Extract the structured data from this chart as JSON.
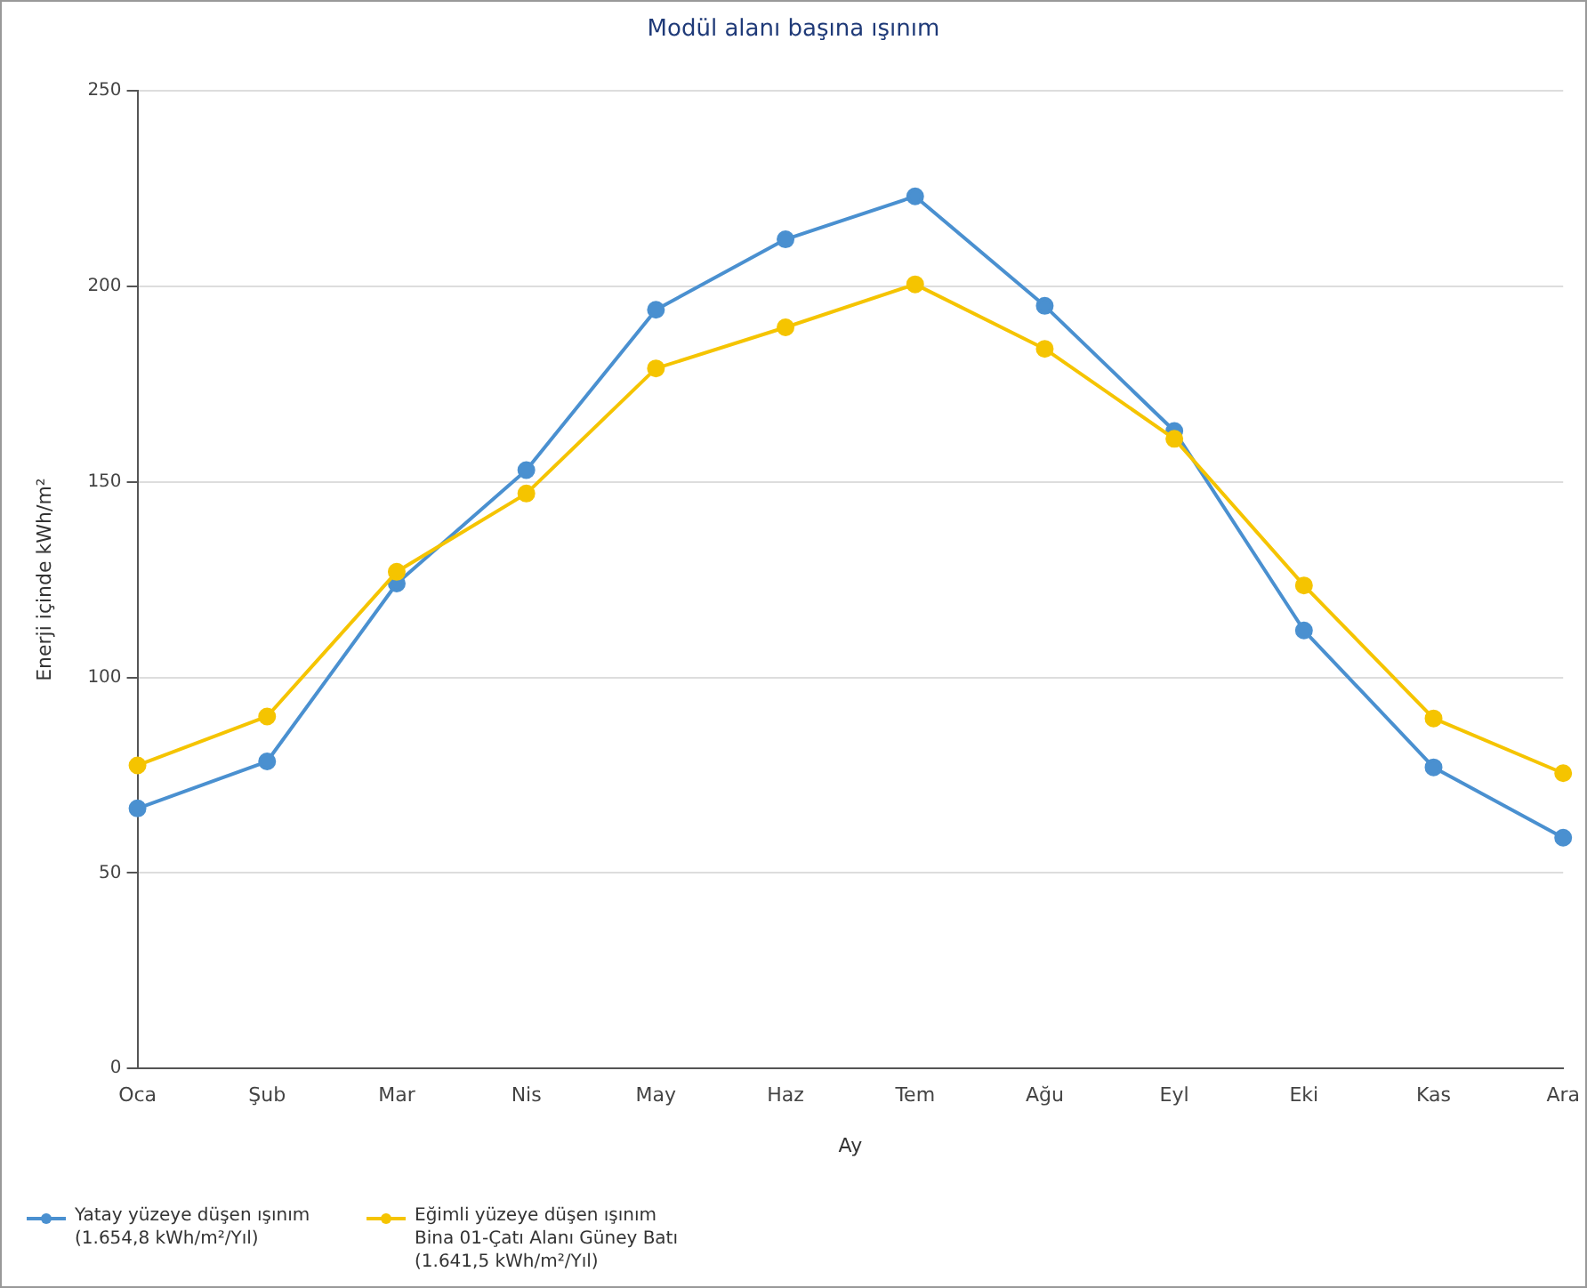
{
  "chart_data": {
    "type": "line",
    "title": "Modül alanı başına ışınım",
    "xlabel": "Ay",
    "ylabel": "Enerji içinde kWh/m²",
    "categories": [
      "Oca",
      "Şub",
      "Mar",
      "Nis",
      "May",
      "Haz",
      "Tem",
      "Ağu",
      "Eyl",
      "Eki",
      "Kas",
      "Ara"
    ],
    "series": [
      {
        "name": "Yatay yüzeye düşen ışınım (1.654,8 kWh/m²/Yıl)",
        "color": "#4a90d0",
        "values": [
          66.5,
          78.5,
          124,
          153,
          194,
          212,
          223,
          195,
          163,
          112,
          77,
          59
        ]
      },
      {
        "name": "Eğimli yüzeye düşen ışınım Bina 01-Çatı Alanı Güney Batı (1.641,5 kWh/m²/Yıl)",
        "color": "#f5c400",
        "values": [
          77.5,
          90,
          127,
          147,
          179,
          189.5,
          200.5,
          184,
          161,
          123.5,
          89.5,
          75.5
        ]
      }
    ],
    "ylim": [
      0,
      250
    ],
    "yticks": [
      0,
      50,
      100,
      150,
      200,
      250
    ],
    "grid": "y",
    "legend": "bottom left",
    "marker": "circle",
    "line_style": "solid"
  }
}
